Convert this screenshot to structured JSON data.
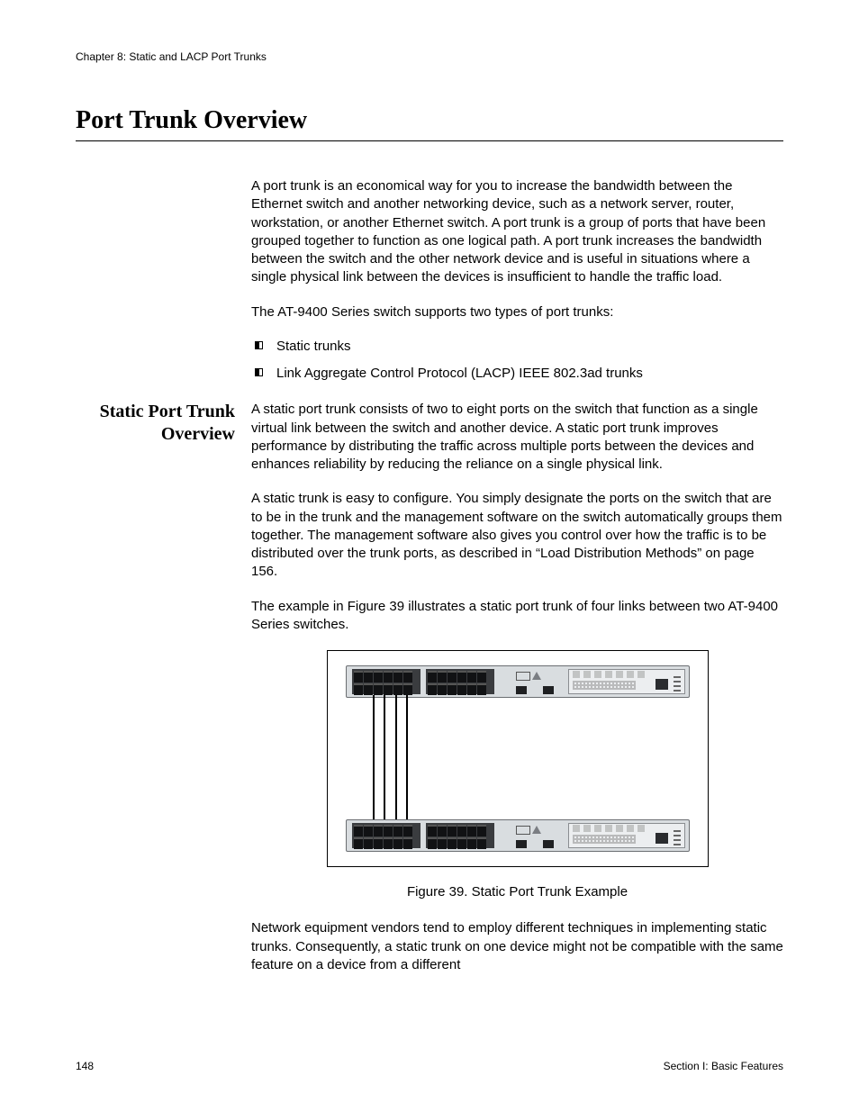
{
  "header": {
    "chapter": "Chapter 8: Static and LACP Port Trunks"
  },
  "title": "Port Trunk Overview",
  "intro": {
    "p1": "A port trunk is an economical way for you to increase the bandwidth between the Ethernet switch and another networking device, such as a network server, router, workstation, or another Ethernet switch. A port trunk is a group of ports that have been grouped together to function as one logical path. A port trunk increases the bandwidth between the switch and the other network device and is useful in situations where a single physical link between the devices is insufficient to handle the traffic load.",
    "p2": "The AT-9400 Series switch supports two types of port trunks:",
    "bullets": [
      "Static trunks",
      "Link Aggregate Control Protocol (LACP) IEEE 802.3ad trunks"
    ]
  },
  "static_section": {
    "heading": "Static Port Trunk Overview",
    "p1": "A static port trunk consists of two to eight ports on the switch that function as a single virtual link between the switch and another device. A static port trunk improves performance by distributing the traffic across multiple ports between the devices and enhances reliability by reducing the reliance on a single physical link.",
    "p2": "A static trunk is easy to configure. You simply designate the ports on the switch that are to be in the trunk and the management software on the switch automatically groups them together. The management software also gives you control over how the traffic is to be distributed over the trunk ports, as described in “Load Distribution Methods” on page 156.",
    "p3": "The example in Figure 39 illustrates a static port trunk of four links between two AT-9400 Series switches.",
    "figure_caption": "Figure 39. Static Port Trunk Example",
    "p4": "Network equipment vendors tend to employ different techniques in implementing static trunks. Consequently, a static trunk on one device might not be compatible with the same feature on a device from a different"
  },
  "figure": {
    "type": "diagram",
    "switches": 2,
    "ports_per_group": 12,
    "trunk_links": 4,
    "colors": {
      "chassis": "#d9dde0",
      "chassis_border": "#6b6e72",
      "port_block": "#3a3c3f",
      "port": "#111214",
      "panel": "#eceef0",
      "cable": "#000000",
      "frame_border": "#000000"
    },
    "dimensions": {
      "switch_w": 380,
      "switch_h": 34,
      "gap_h": 135
    }
  },
  "footer": {
    "page_number": "148",
    "section": "Section I: Basic Features"
  },
  "typography": {
    "title_font": "Times New Roman",
    "title_size_pt": 21,
    "side_heading_size_pt": 15,
    "body_font": "Arial",
    "body_size_pt": 11,
    "footer_size_pt": 9
  },
  "colors": {
    "text": "#000000",
    "rule": "#000000",
    "background": "#ffffff"
  }
}
